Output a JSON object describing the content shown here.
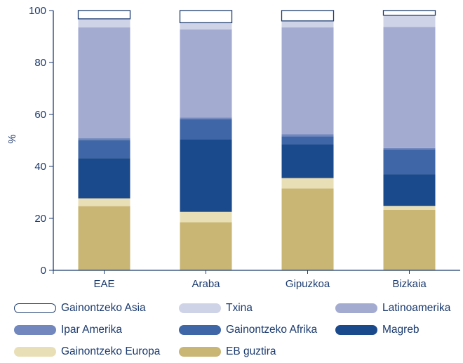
{
  "chart_data": {
    "type": "bar",
    "stacked": true,
    "categories": [
      "EAE",
      "Araba",
      "Gipuzkoa",
      "Bizkaia"
    ],
    "ylabel": "%",
    "ylim": [
      0,
      100
    ],
    "yticks": [
      0,
      20,
      40,
      60,
      80,
      100
    ],
    "grid": false,
    "legend_position": "bottom",
    "series": [
      {
        "name": "EB guztira",
        "color": "#c9b674",
        "values": [
          24.7,
          18.5,
          31.5,
          23.3
        ]
      },
      {
        "name": "Gainontzeko Europa",
        "color": "#e9dfb7",
        "values": [
          3.0,
          4.0,
          4.0,
          1.5
        ]
      },
      {
        "name": "Magreb",
        "color": "#1b4a8c",
        "values": [
          15.5,
          28.0,
          13.0,
          12.2
        ]
      },
      {
        "name": "Gainontzeko Afrika",
        "color": "#3f66a6",
        "values": [
          7.0,
          7.7,
          3.0,
          9.5
        ]
      },
      {
        "name": "Ipar Amerika",
        "color": "#7187bd",
        "values": [
          0.7,
          0.6,
          0.9,
          0.6
        ]
      },
      {
        "name": "Latinoamerika",
        "color": "#a3abd1",
        "values": [
          42.6,
          33.9,
          41.1,
          46.6
        ]
      },
      {
        "name": "Txina",
        "color": "#cfd3e8",
        "values": [
          3.3,
          2.6,
          2.5,
          4.5
        ]
      },
      {
        "name": "Gainontzeko Asia",
        "color": "#ffffff",
        "values": [
          3.2,
          4.7,
          4.0,
          1.8
        ]
      }
    ]
  },
  "legend_order": [
    "Gainontzeko Asia",
    "Txina",
    "Latinoamerika",
    "Ipar Amerika",
    "Gainontzeko Afrika",
    "Magreb",
    "Gainontzeko Europa",
    "EB guztira"
  ],
  "colors": {
    "axis": "#1a3a6e",
    "text": "#1a3a6e"
  }
}
